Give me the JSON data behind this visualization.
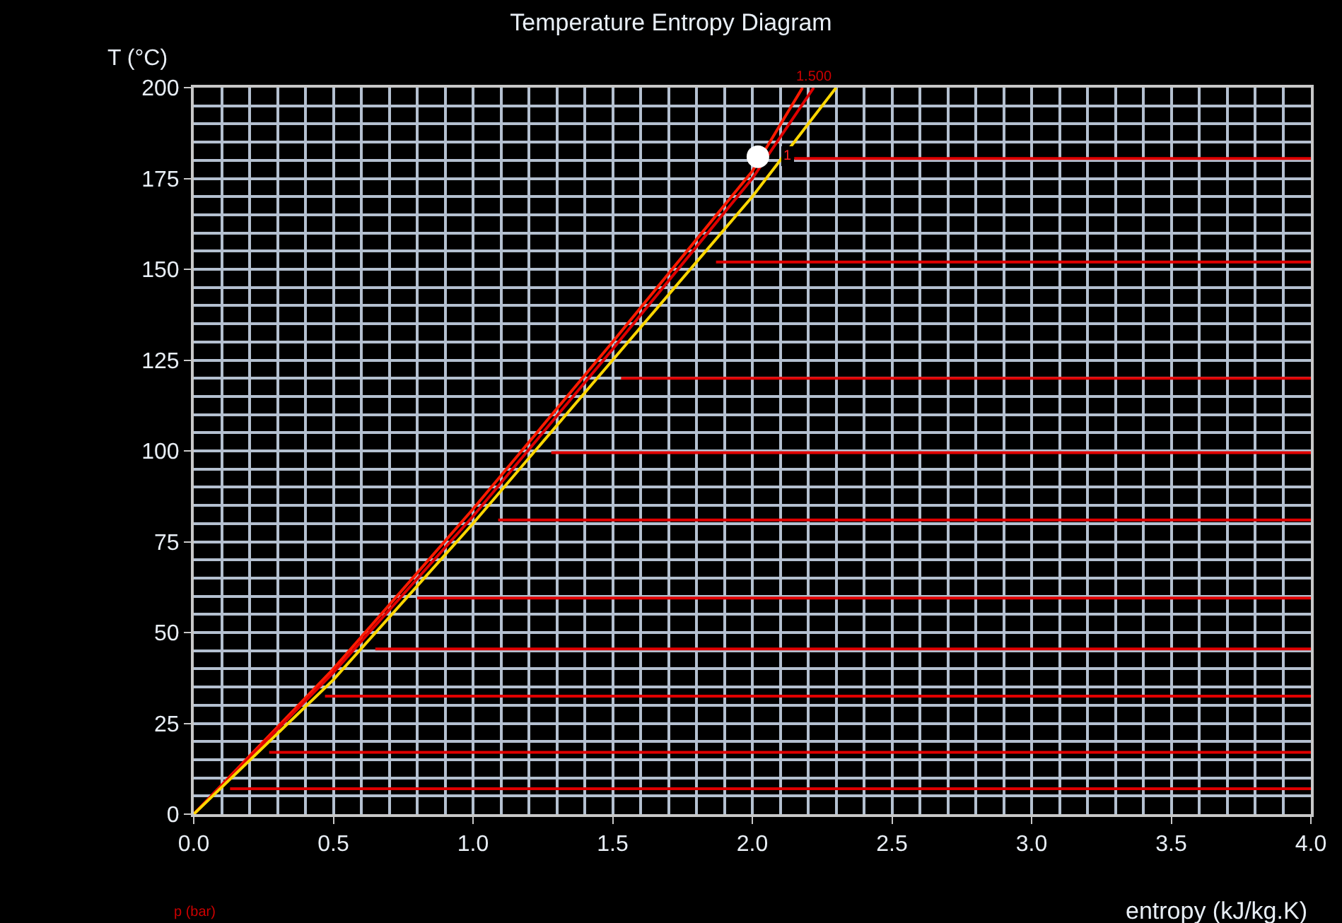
{
  "chart_data": {
    "type": "line",
    "title": "Temperature Entropy Diagram",
    "xlabel": "entropy (kJ/kg.K)",
    "ylabel": "T (°C)",
    "xlim": [
      0,
      4
    ],
    "ylim": [
      0,
      200
    ],
    "xticks": [
      {
        "value": 0,
        "label": "0.0"
      },
      {
        "value": 0.5,
        "label": "0.5"
      },
      {
        "value": 1,
        "label": "1.0"
      },
      {
        "value": 1.5,
        "label": "1.5"
      },
      {
        "value": 2,
        "label": "2.0"
      },
      {
        "value": 2.5,
        "label": "2.5"
      },
      {
        "value": 3,
        "label": "3.0"
      },
      {
        "value": 3.5,
        "label": "3.5"
      },
      {
        "value": 4,
        "label": "4.0"
      }
    ],
    "yticks": [
      0,
      25,
      50,
      75,
      100,
      125,
      150,
      175,
      200
    ],
    "grid": true,
    "series": [
      {
        "color": "#ff1a00",
        "x": [
          0,
          0.5,
          1.0,
          1.5,
          2.0,
          2.18
        ],
        "values": [
          0,
          40,
          84,
          130,
          177,
          200
        ]
      },
      {
        "color": "#e00000",
        "x": [
          0,
          0.5,
          1.0,
          1.5,
          2.0,
          2.22
        ],
        "values": [
          0,
          39,
          82,
          128,
          175,
          200
        ]
      },
      {
        "color": "#ffd700",
        "x": [
          0,
          0.5,
          1.0,
          1.5,
          2.0,
          2.3
        ],
        "values": [
          0,
          37,
          80,
          125,
          170,
          200
        ]
      },
      {
        "color": "#e00000",
        "x": [
          2.15,
          4.0
        ],
        "values": [
          180.5,
          180.5
        ]
      },
      {
        "color": "#e00000",
        "x": [
          1.87,
          4.0
        ],
        "values": [
          152,
          152
        ]
      },
      {
        "color": "#e00000",
        "x": [
          1.53,
          4.0
        ],
        "values": [
          120,
          120
        ]
      },
      {
        "color": "#e00000",
        "x": [
          1.28,
          4.0
        ],
        "values": [
          99.5,
          99.5
        ]
      },
      {
        "color": "#e00000",
        "x": [
          1.09,
          4.0
        ],
        "values": [
          81,
          81
        ]
      },
      {
        "color": "#e00000",
        "x": [
          0.8,
          4.0
        ],
        "values": [
          59.5,
          59.5
        ]
      },
      {
        "color": "#e00000",
        "x": [
          0.65,
          4.0
        ],
        "values": [
          45.5,
          45.5
        ]
      },
      {
        "color": "#e00000",
        "x": [
          0.47,
          4.0
        ],
        "values": [
          32.5,
          32.5
        ]
      },
      {
        "color": "#e00000",
        "x": [
          0.27,
          4.0
        ],
        "values": [
          17,
          17
        ]
      },
      {
        "color": "#e00000",
        "x": [
          0.13,
          4.0
        ],
        "values": [
          7,
          7
        ]
      },
      {
        "type": "scatter",
        "color": "#ffffff",
        "x": [
          2.02
        ],
        "values": [
          181
        ]
      }
    ],
    "annotations": [
      {
        "text": "1",
        "x": 2.02,
        "y": 181
      },
      "1.500",
      "p (bar)"
    ]
  }
}
